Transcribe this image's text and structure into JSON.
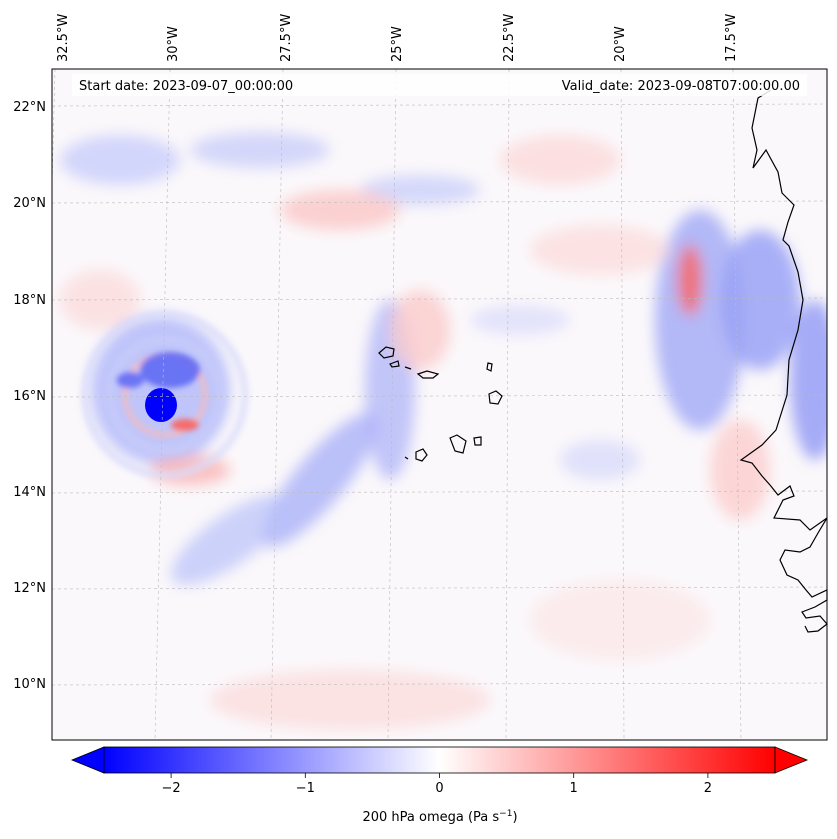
{
  "map": {
    "start_label": "Start date: 2023-09-07_00:00:00",
    "valid_label": "Valid_date: 2023-09-08T07:00:00.00",
    "lon_labels": [
      "32.5°W",
      "30°W",
      "27.5°W",
      "25°W",
      "22.5°W",
      "20°W",
      "17.5°W"
    ],
    "lat_labels": [
      "22°N",
      "20°N",
      "18°N",
      "16°N",
      "14°N",
      "12°N",
      "10°N"
    ],
    "colorbar": {
      "label": "200 hPa omega (Pa s",
      "label_exponent": "−1",
      "label_close": ")",
      "ticks": [
        "−2",
        "−1",
        "0",
        "1",
        "2"
      ],
      "tick_values": [
        -2,
        -1,
        0,
        1,
        2
      ],
      "range": [
        -2.5,
        2.5
      ],
      "levels": 50,
      "colormap": "bwr",
      "negative_color": "#0000ff",
      "positive_color": "#ff0000",
      "neutral_color": "#ffffff"
    },
    "features": {
      "cyclone_center": {
        "lon": -30.4,
        "lat": 15.9,
        "omega": -2.5
      },
      "islands": [
        "Cape Verde Islands"
      ],
      "coastline": "West Africa"
    }
  }
}
